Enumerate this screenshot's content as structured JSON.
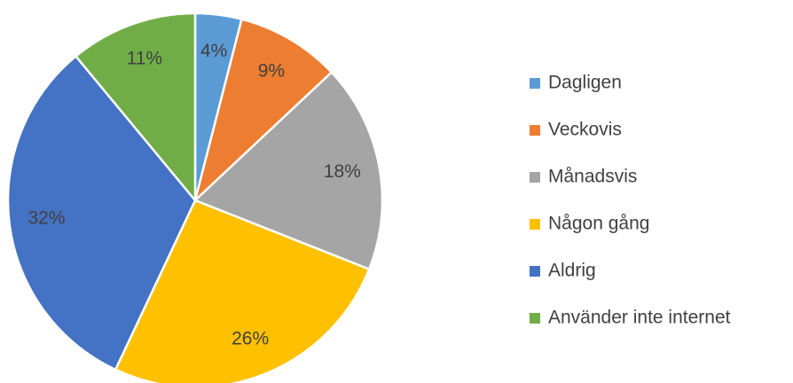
{
  "chart_data": {
    "type": "pie",
    "categories": [
      "Dagligen",
      "Veckovis",
      "Månadsvis",
      "Någon gång",
      "Aldrig",
      "Använder inte internet"
    ],
    "values": [
      4,
      9,
      18,
      26,
      32,
      11
    ],
    "value_labels": [
      "4%",
      "9%",
      "18%",
      "26%",
      "32%",
      "11%"
    ],
    "colors": [
      "#5b9bd5",
      "#ed7d31",
      "#a5a5a5",
      "#ffc000",
      "#4472c4",
      "#70ad47"
    ],
    "legend": "right"
  }
}
